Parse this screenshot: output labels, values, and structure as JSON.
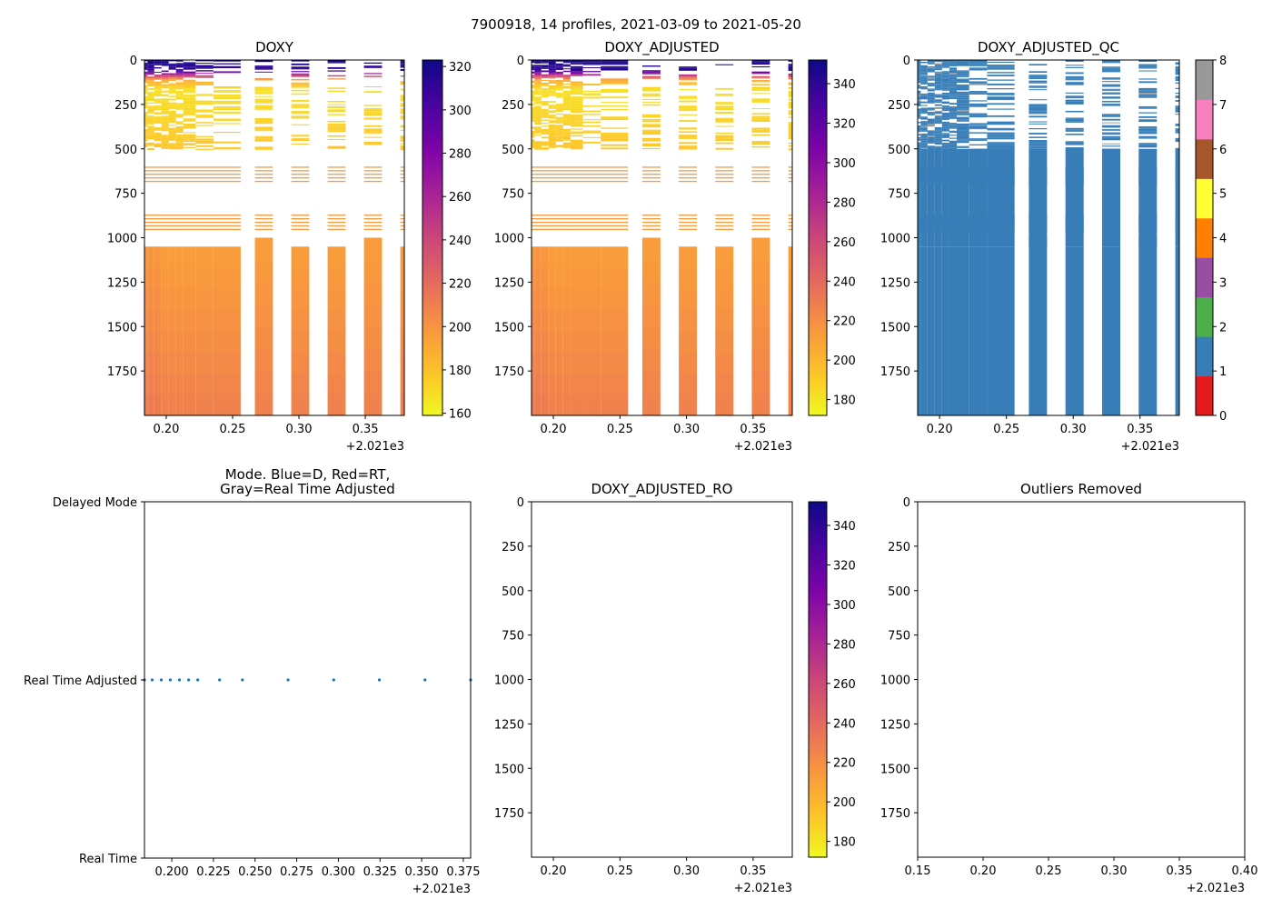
{
  "suptitle": "7900918, 14 profiles, 2021-03-09 to 2021-05-20",
  "chart_data": [
    {
      "id": "doxy",
      "type": "heatmap",
      "title": "DOXY",
      "xlabel": "",
      "ylabel": "",
      "x_offset_label": "+2.021e3",
      "xlim": [
        0.1836,
        0.3794
      ],
      "ylim": [
        2000,
        0
      ],
      "xticks": [
        0.2,
        0.25,
        0.3,
        0.35
      ],
      "xtick_labels": [
        "0.20",
        "0.25",
        "0.30",
        "0.35"
      ],
      "yticks": [
        0,
        250,
        500,
        750,
        1000,
        1250,
        1500,
        1750
      ],
      "ytick_labels": [
        "0",
        "250",
        "500",
        "750",
        "1000",
        "1250",
        "1500",
        "1750"
      ],
      "colormap": "plasma_r",
      "colorbar": {
        "range": [
          159,
          323
        ],
        "ticks": [
          160,
          180,
          200,
          220,
          240,
          260,
          280,
          300,
          320
        ],
        "tick_labels": [
          "160",
          "180",
          "200",
          "220",
          "240",
          "260",
          "280",
          "300",
          "320"
        ]
      },
      "profile_times": [
        0.1836,
        0.1882,
        0.1937,
        0.1991,
        0.2046,
        0.2101,
        0.2156,
        0.2287,
        0.2424,
        0.2698,
        0.2972,
        0.3246,
        0.352,
        0.3794
      ],
      "deep_max_depth": [
        2000,
        2000,
        2000,
        2000,
        2000,
        2000,
        2000,
        2000,
        2000,
        2000,
        2000,
        2000,
        2000,
        2000
      ],
      "deep_start_depth": [
        1050,
        1050,
        1050,
        1050,
        1050,
        1050,
        1050,
        1050,
        1050,
        1000,
        1050,
        1050,
        1000,
        1050
      ],
      "layers": [
        {
          "from": 0,
          "to": 60,
          "value": 320
        },
        {
          "from": 60,
          "to": 100,
          "value": 270
        },
        {
          "from": 100,
          "to": 150,
          "value": 200
        },
        {
          "from": 150,
          "to": 500,
          "value": 168
        },
        {
          "from": 1000,
          "to": 2000,
          "value": 205
        }
      ]
    },
    {
      "id": "doxy_adjusted",
      "type": "heatmap",
      "title": "DOXY_ADJUSTED",
      "xlabel": "",
      "ylabel": "",
      "x_offset_label": "+2.021e3",
      "xlim": [
        0.1836,
        0.3794
      ],
      "ylim": [
        2000,
        0
      ],
      "xticks": [
        0.2,
        0.25,
        0.3,
        0.35
      ],
      "xtick_labels": [
        "0.20",
        "0.25",
        "0.30",
        "0.35"
      ],
      "yticks": [
        0,
        250,
        500,
        750,
        1000,
        1250,
        1500,
        1750
      ],
      "ytick_labels": [
        "0",
        "250",
        "500",
        "750",
        "1000",
        "1250",
        "1500",
        "1750"
      ],
      "colormap": "plasma_r",
      "colorbar": {
        "range": [
          172,
          352
        ],
        "ticks": [
          180,
          200,
          220,
          240,
          260,
          280,
          300,
          320,
          340
        ],
        "tick_labels": [
          "180",
          "200",
          "220",
          "240",
          "260",
          "280",
          "300",
          "320",
          "340"
        ]
      }
    },
    {
      "id": "doxy_adjusted_qc",
      "type": "heatmap",
      "title": "DOXY_ADJUSTED_QC",
      "xlabel": "",
      "ylabel": "",
      "x_offset_label": "+2.021e3",
      "xlim": [
        0.1836,
        0.3794
      ],
      "ylim": [
        2000,
        0
      ],
      "xticks": [
        0.2,
        0.25,
        0.3,
        0.35
      ],
      "xtick_labels": [
        "0.20",
        "0.25",
        "0.30",
        "0.35"
      ],
      "yticks": [
        0,
        250,
        500,
        750,
        1000,
        1250,
        1500,
        1750
      ],
      "ytick_labels": [
        "0",
        "250",
        "500",
        "750",
        "1000",
        "1250",
        "1500",
        "1750"
      ],
      "dominant_flag": 1,
      "secondary_flag": 8,
      "colorbar": {
        "range": [
          0,
          8
        ],
        "ticks": [
          0,
          1,
          2,
          3,
          4,
          5,
          6,
          7,
          8
        ],
        "tick_labels": [
          "0",
          "1",
          "2",
          "3",
          "4",
          "5",
          "6",
          "7",
          "8"
        ],
        "colors": [
          "#e41a1c",
          "#377eb8",
          "#4daf4a",
          "#984ea3",
          "#ff7f00",
          "#ffff33",
          "#a65628",
          "#f781bf",
          "#999999"
        ]
      }
    },
    {
      "id": "mode",
      "type": "scatter",
      "title": "Mode. Blue=D, Red=RT,\nGray=Real Time Adjusted",
      "title_lines": [
        "Mode. Blue=D, Red=RT,",
        "Gray=Real Time Adjusted"
      ],
      "xlabel": "",
      "ylabel": "",
      "x_offset_label": "+2.021e3",
      "xlim": [
        0.1836,
        0.3794
      ],
      "ylim": [
        0,
        2
      ],
      "xticks": [
        0.2,
        0.225,
        0.25,
        0.275,
        0.3,
        0.325,
        0.35,
        0.375
      ],
      "xtick_labels": [
        "0.200",
        "0.225",
        "0.250",
        "0.275",
        "0.300",
        "0.325",
        "0.350",
        "0.375"
      ],
      "yticks": [
        0,
        1,
        2
      ],
      "ytick_labels": [
        "Real Time",
        "Real Time Adjusted",
        "Delayed Mode"
      ],
      "series": [
        {
          "name": "Real Time Adjusted",
          "color": "#1f77b4",
          "x": [
            0.1836,
            0.1882,
            0.1937,
            0.1991,
            0.2046,
            0.2101,
            0.2156,
            0.2287,
            0.2424,
            0.2698,
            0.2972,
            0.3246,
            0.352,
            0.3794
          ],
          "y": [
            1,
            1,
            1,
            1,
            1,
            1,
            1,
            1,
            1,
            1,
            1,
            1,
            1,
            1
          ]
        }
      ]
    },
    {
      "id": "doxy_adjusted_ro",
      "type": "heatmap",
      "title": "DOXY_ADJUSTED_RO",
      "xlabel": "",
      "ylabel": "",
      "x_offset_label": "+2.021e3",
      "xlim": [
        0.1836,
        0.3794
      ],
      "ylim": [
        2000,
        0
      ],
      "xticks": [
        0.2,
        0.25,
        0.3,
        0.35
      ],
      "xtick_labels": [
        "0.20",
        "0.25",
        "0.30",
        "0.35"
      ],
      "yticks": [
        0,
        250,
        500,
        750,
        1000,
        1250,
        1500,
        1750
      ],
      "ytick_labels": [
        "0",
        "250",
        "500",
        "750",
        "1000",
        "1250",
        "1500",
        "1750"
      ],
      "colormap": "plasma_r",
      "colorbar": {
        "range": [
          172,
          352
        ],
        "ticks": [
          180,
          200,
          220,
          240,
          260,
          280,
          300,
          320,
          340
        ],
        "tick_labels": [
          "180",
          "200",
          "220",
          "240",
          "260",
          "280",
          "300",
          "320",
          "340"
        ]
      },
      "values": []
    },
    {
      "id": "outliers_removed",
      "type": "scatter",
      "title": "Outliers Removed",
      "xlabel": "",
      "ylabel": "",
      "x_offset_label": "+2.021e3",
      "xlim": [
        0.15,
        0.4
      ],
      "ylim": [
        2000,
        0
      ],
      "xticks": [
        0.15,
        0.2,
        0.25,
        0.3,
        0.35,
        0.4
      ],
      "xtick_labels": [
        "0.15",
        "0.20",
        "0.25",
        "0.30",
        "0.35",
        "0.40"
      ],
      "yticks": [
        0,
        250,
        500,
        750,
        1000,
        1250,
        1500,
        1750
      ],
      "ytick_labels": [
        "0",
        "250",
        "500",
        "750",
        "1000",
        "1250",
        "1500",
        "1750"
      ],
      "series": []
    }
  ]
}
